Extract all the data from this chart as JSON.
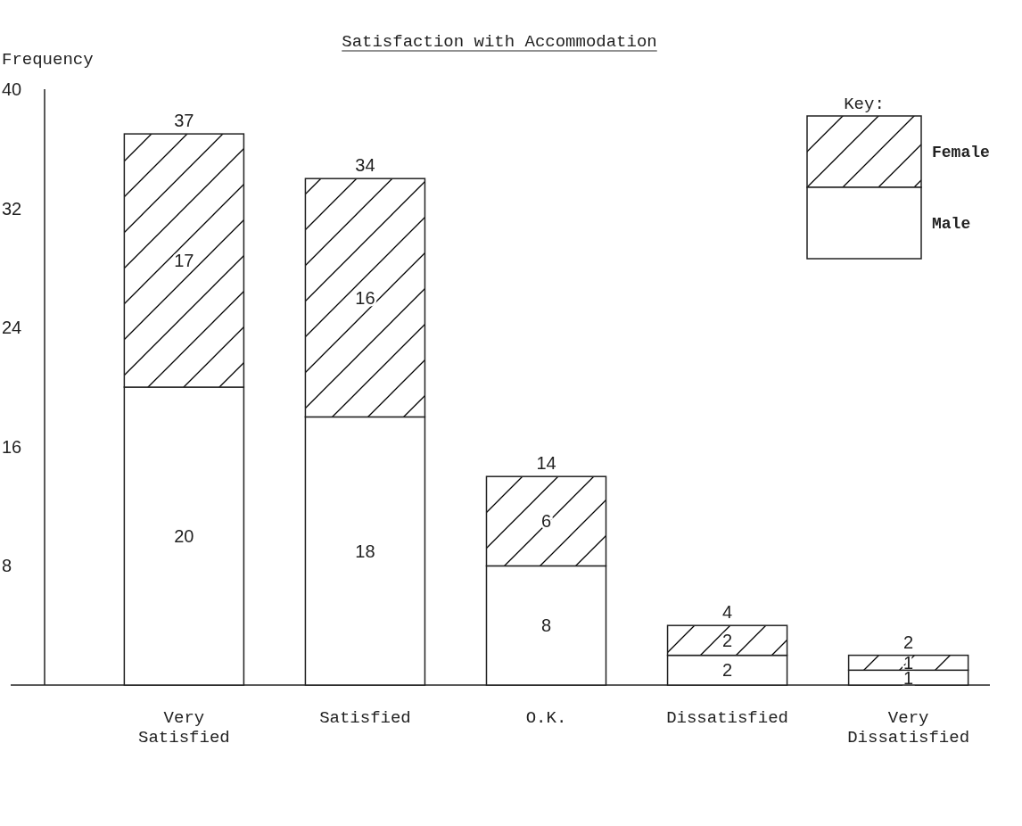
{
  "chart_data": {
    "type": "bar",
    "title": "Satisfaction with Accommodation",
    "ylabel": "Frequency",
    "legend_title": "Key:",
    "categories": [
      "Very Satisfied",
      "Satisfied",
      "O.K.",
      "Dissatisfied",
      "Very Dissatisfied"
    ],
    "series": [
      {
        "name": "Male",
        "color": "#ffffff",
        "values": [
          20,
          18,
          8,
          2,
          1
        ]
      },
      {
        "name": "Female",
        "color": "#000000",
        "values": [
          17,
          16,
          6,
          2,
          1
        ]
      }
    ],
    "stacked": true,
    "data_labels": true,
    "totals": [
      "37",
      "34",
      "14",
      "4",
      "2"
    ],
    "ylim": [
      0,
      40
    ],
    "yticks": [
      8,
      16,
      24,
      32,
      40
    ],
    "grid": false,
    "legend": "top right"
  }
}
